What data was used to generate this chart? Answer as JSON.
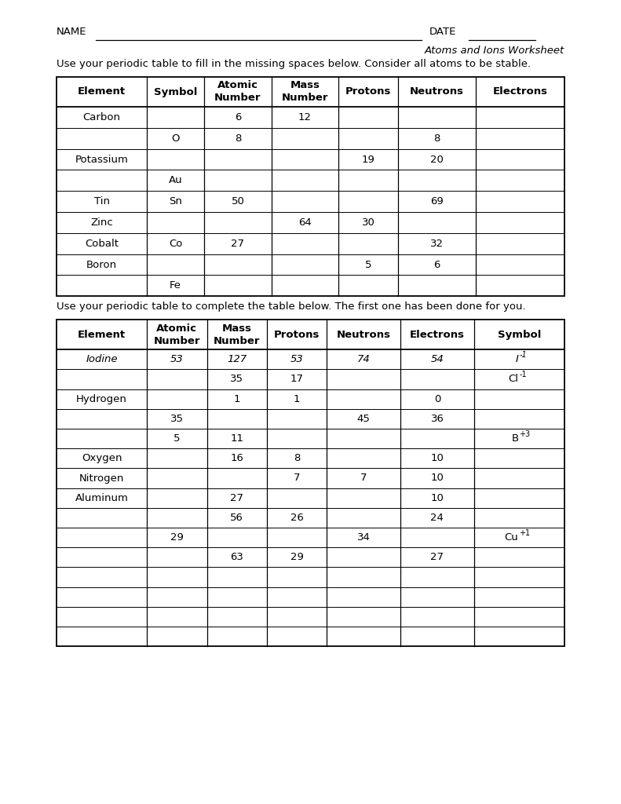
{
  "page_width": 7.91,
  "page_height": 10.24,
  "background": "#ffffff",
  "instruction1": "Use your periodic table to fill in the missing spaces below. Consider all atoms to be stable.",
  "instruction2": "Use your periodic table to complete the table below. The first one has been done for you.",
  "table1_headers": [
    "Element",
    "Symbol",
    "Atomic\nNumber",
    "Mass\nNumber",
    "Protons",
    "Neutrons",
    "Electrons"
  ],
  "table1_col_props": [
    0.178,
    0.113,
    0.132,
    0.132,
    0.118,
    0.152,
    0.175
  ],
  "table1_data": [
    [
      "Carbon",
      "",
      "6",
      "12",
      "",
      "",
      ""
    ],
    [
      "",
      "O",
      "8",
      "",
      "",
      "8",
      ""
    ],
    [
      "Potassium",
      "",
      "",
      "",
      "19",
      "20",
      ""
    ],
    [
      "",
      "Au",
      "",
      "",
      "",
      "",
      ""
    ],
    [
      "Tin",
      "Sn",
      "50",
      "",
      "",
      "69",
      ""
    ],
    [
      "Zinc",
      "",
      "",
      "64",
      "30",
      "",
      ""
    ],
    [
      "Cobalt",
      "Co",
      "27",
      "",
      "",
      "32",
      ""
    ],
    [
      "Boron",
      "",
      "",
      "",
      "5",
      "6",
      ""
    ],
    [
      "",
      "Fe",
      "",
      "",
      "",
      "",
      ""
    ]
  ],
  "table2_headers": [
    "Element",
    "Atomic\nNumber",
    "Mass\nNumber",
    "Protons",
    "Neutrons",
    "Electrons",
    "Symbol"
  ],
  "table2_col_props": [
    0.178,
    0.118,
    0.118,
    0.118,
    0.145,
    0.145,
    0.178
  ],
  "table2_data": [
    [
      "Iodine",
      "53",
      "127",
      "53",
      "74",
      "54",
      "I-1"
    ],
    [
      "",
      "",
      "35",
      "17",
      "",
      "",
      "Cl-1"
    ],
    [
      "Hydrogen",
      "",
      "1",
      "1",
      "",
      "0",
      ""
    ],
    [
      "",
      "35",
      "",
      "",
      "45",
      "36",
      ""
    ],
    [
      "",
      "5",
      "11",
      "",
      "",
      "",
      "B+3"
    ],
    [
      "Oxygen",
      "",
      "16",
      "8",
      "",
      "10",
      ""
    ],
    [
      "Nitrogen",
      "",
      "",
      "7",
      "7",
      "10",
      ""
    ],
    [
      "Aluminum",
      "",
      "27",
      "",
      "",
      "10",
      ""
    ],
    [
      "",
      "",
      "56",
      "26",
      "",
      "24",
      ""
    ],
    [
      "",
      "29",
      "",
      "",
      "34",
      "",
      "Cu+1"
    ],
    [
      "",
      "",
      "63",
      "29",
      "",
      "27",
      ""
    ],
    [
      "",
      "",
      "",
      "",
      "",
      "",
      ""
    ],
    [
      "",
      "",
      "",
      "",
      "",
      "",
      ""
    ],
    [
      "",
      "",
      "",
      "",
      "",
      "",
      ""
    ],
    [
      "",
      "",
      "",
      "",
      "",
      "",
      ""
    ]
  ],
  "table2_italic_rows": [
    0
  ],
  "ion_superscript_map": {
    "I-1": [
      "I",
      "-1"
    ],
    "Cl-1": [
      "Cl",
      "-1"
    ],
    "B+3": [
      "B",
      "+3"
    ],
    "Cu+1": [
      "Cu",
      "+1"
    ]
  }
}
